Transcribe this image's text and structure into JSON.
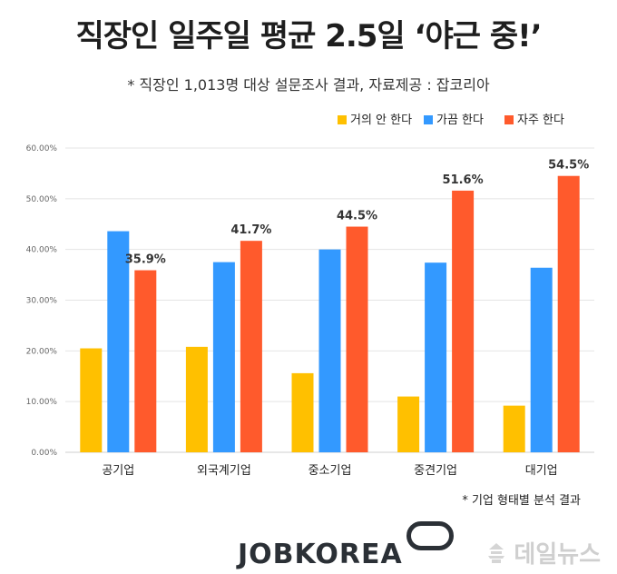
{
  "header": {
    "title": "직장인 일주일 평균 2.5일 ‘야근 중!’",
    "subtitle": "* 직장인 1,013명 대상 설문조사 결과, 자료제공 : 잡코리아"
  },
  "footnote": "* 기업 형태별 분석 결과",
  "brand": {
    "logo_text": "JOBKOREA",
    "watermark_text": "데일뉴스"
  },
  "chart_data": {
    "type": "bar",
    "title": "",
    "xlabel": "",
    "ylabel": "",
    "ylim": [
      0,
      60
    ],
    "yticks": [
      0,
      10,
      20,
      30,
      40,
      50,
      60
    ],
    "ytick_labels": [
      "0.00%",
      "10.00%",
      "20.00%",
      "30.00%",
      "40.00%",
      "50.00%",
      "60.00%"
    ],
    "grid": true,
    "legend_position": "top-right",
    "categories": [
      "공기업",
      "외국계기업",
      "중소기업",
      "중견기업",
      "대기업"
    ],
    "series": [
      {
        "name": "거의 안 한다",
        "color": "#FFC000",
        "values": [
          20.5,
          20.8,
          15.6,
          11.0,
          9.2
        ]
      },
      {
        "name": "가끔 한다",
        "color": "#3399FF",
        "values": [
          43.6,
          37.5,
          40.0,
          37.4,
          36.4
        ]
      },
      {
        "name": "자주 한다",
        "color": "#FF5A2C",
        "values": [
          35.9,
          41.7,
          44.5,
          51.6,
          54.5
        ],
        "data_labels": [
          "35.9%",
          "41.7%",
          "44.5%",
          "51.6%",
          "54.5%"
        ]
      }
    ]
  }
}
